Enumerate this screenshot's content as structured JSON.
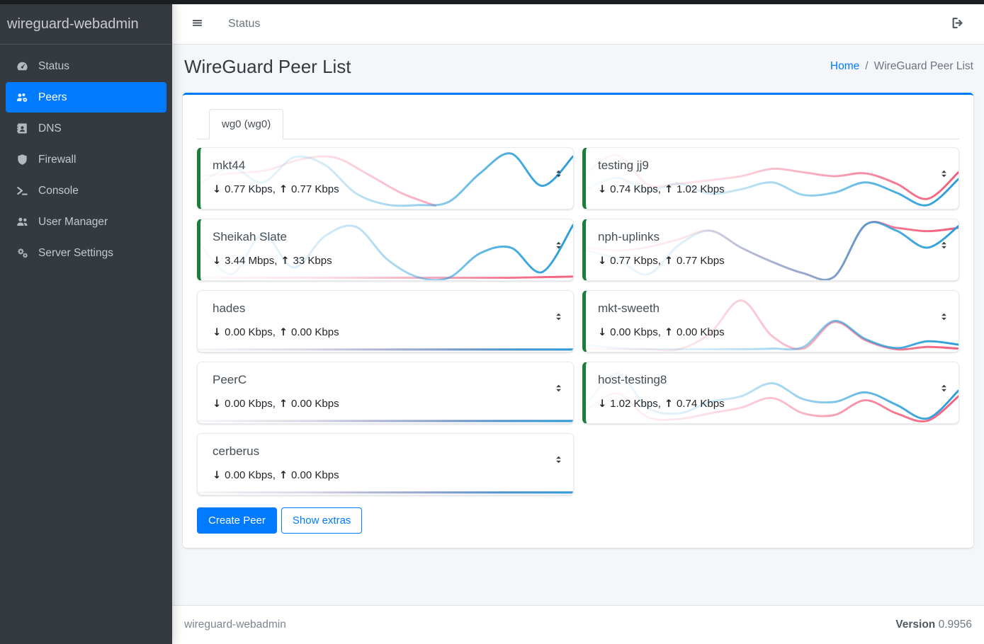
{
  "colors": {
    "accent_blue": "#007bff",
    "online_green": "#1d7e3c",
    "chart_blue": "#2b9edb",
    "chart_pink": "#f2617f",
    "sidebar_bg": "#343a40",
    "content_bg": "#f4f6f9"
  },
  "sidebar": {
    "brand": "wireguard-webadmin",
    "items": [
      {
        "id": "status",
        "label": "Status",
        "icon": "gauge-icon",
        "active": false
      },
      {
        "id": "peers",
        "label": "Peers",
        "icon": "users-gear-icon",
        "active": true
      },
      {
        "id": "dns",
        "label": "DNS",
        "icon": "address-book-icon",
        "active": false
      },
      {
        "id": "firewall",
        "label": "Firewall",
        "icon": "shield-icon",
        "active": false
      },
      {
        "id": "console",
        "label": "Console",
        "icon": "terminal-icon",
        "active": false
      },
      {
        "id": "user-manager",
        "label": "User Manager",
        "icon": "users-icon",
        "active": false
      },
      {
        "id": "server-settings",
        "label": "Server Settings",
        "icon": "cogs-icon",
        "active": false
      }
    ]
  },
  "navbar": {
    "link_label": "Status"
  },
  "page": {
    "title": "WireGuard Peer List",
    "breadcrumb_home": "Home",
    "breadcrumb_separator": "/",
    "breadcrumb_current": "WireGuard Peer List"
  },
  "tab": {
    "label": "wg0 (wg0)"
  },
  "labels": {
    "traffic_separator": ","
  },
  "peers": {
    "columns": [
      [
        {
          "name": "mkt44",
          "online": true,
          "down": "0.77 Kbps",
          "up": "0.77 Kbps",
          "spark": {
            "blue": [
              0.42,
              0.7,
              0.44,
              0.88,
              0.75,
              0.25,
              0.05,
              0.04,
              0.1,
              0.6,
              0.95,
              0.38,
              0.9
            ],
            "pink": [
              0.55,
              0.6,
              0.66,
              0.85,
              0.88,
              0.58,
              0.25,
              0.03
            ],
            "pink_span": 0.63
          }
        },
        {
          "name": "Sheikah Slate",
          "online": true,
          "down": "3.44 Mbps",
          "up": "33 Kbps",
          "spark": {
            "blue": [
              0.6,
              0.08,
              0.78,
              0.2,
              0.75,
              0.92,
              0.35,
              0.03,
              0.02,
              0.45,
              0.55,
              0.12,
              0.95
            ],
            "pink": [
              0.03,
              0.02,
              0.02,
              0.02,
              0.02,
              0.02,
              0.02,
              0.02,
              0.02,
              0.02,
              0.02,
              0.03,
              0.04
            ],
            "pink_span": 1
          }
        },
        {
          "name": "hades",
          "online": false,
          "down": "0.00 Kbps",
          "up": "0.00 Kbps",
          "spark": {
            "blue": [
              0.015,
              0.015,
              0.015,
              0.015,
              0.015,
              0.015,
              0.015,
              0.015,
              0.015,
              0.015,
              0.015,
              0.015,
              0.015
            ],
            "pink": [
              0.015,
              0.015,
              0.015,
              0.015,
              0.015,
              0.015,
              0.015,
              0.015,
              0.015,
              0.015,
              0.015,
              0.015,
              0.015
            ],
            "pink_span": 1
          }
        },
        {
          "name": "PeerC",
          "online": false,
          "down": "0.00 Kbps",
          "up": "0.00 Kbps",
          "spark": {
            "blue": [
              0.015,
              0.015,
              0.015,
              0.015,
              0.015,
              0.015,
              0.015,
              0.015,
              0.015,
              0.015,
              0.015,
              0.015,
              0.015
            ],
            "pink": [
              0.015,
              0.015,
              0.015,
              0.015,
              0.015,
              0.015,
              0.015,
              0.015,
              0.015,
              0.015,
              0.015,
              0.015,
              0.015
            ],
            "pink_span": 1
          }
        },
        {
          "name": "cerberus",
          "online": false,
          "down": "0.00 Kbps",
          "up": "0.00 Kbps",
          "spark": {
            "blue": [
              0.015,
              0.015,
              0.015,
              0.015,
              0.015,
              0.015,
              0.015,
              0.015,
              0.015,
              0.015,
              0.015,
              0.015,
              0.015
            ],
            "pink": [
              0.015,
              0.015,
              0.015,
              0.015,
              0.015,
              0.015,
              0.015,
              0.015,
              0.015,
              0.015,
              0.015,
              0.015,
              0.015
            ],
            "pink_span": 1
          }
        }
      ],
      [
        {
          "name": "testing jj9",
          "online": true,
          "down": "0.74 Kbps",
          "up": "1.02 Kbps",
          "spark": {
            "blue": [
              0.32,
              0.52,
              0.3,
              0.42,
              0.24,
              0.32,
              0.44,
              0.22,
              0.26,
              0.44,
              0.26,
              0.04,
              0.5
            ],
            "pink": [
              0.6,
              0.92,
              0.4,
              0.42,
              0.48,
              0.55,
              0.68,
              0.62,
              0.55,
              0.6,
              0.42,
              0.15,
              0.62
            ],
            "pink_span": 1
          }
        },
        {
          "name": "nph-uplinks",
          "online": true,
          "down": "0.77 Kbps",
          "up": "0.77 Kbps",
          "spark": {
            "blue": [
              0.5,
              0.35,
              0.08,
              0.6,
              0.85,
              0.55,
              0.3,
              0.1,
              0.04,
              0.95,
              0.85,
              0.55,
              0.93
            ],
            "pink": [
              0.55,
              0.5,
              0.56,
              0.7,
              0.85,
              0.55,
              0.3,
              0.1,
              0.04,
              0.95,
              0.9,
              0.84,
              0.9
            ],
            "pink_span": 1
          }
        },
        {
          "name": "mkt-sweeth",
          "online": true,
          "down": "0.00 Kbps",
          "up": "0.00 Kbps",
          "spark": {
            "blue": [
              0.1,
              0.04,
              0.02,
              0.02,
              0.02,
              0.02,
              0.03,
              0.06,
              0.52,
              0.2,
              0.04,
              0.16,
              0.1
            ],
            "pink": [
              0.03,
              0.02,
              0.02,
              0.02,
              0.3,
              0.88,
              0.25,
              0.03,
              0.5,
              0.18,
              0.02,
              0.06,
              0.03
            ],
            "pink_span": 1
          }
        },
        {
          "name": "host-testing8",
          "online": true,
          "down": "1.02 Kbps",
          "up": "0.74 Kbps",
          "spark": {
            "blue": [
              0.3,
              0.85,
              0.25,
              0.15,
              0.35,
              0.45,
              0.68,
              0.4,
              0.35,
              0.52,
              0.3,
              0.06,
              0.55
            ],
            "pink": [
              0.2,
              0.5,
              0.08,
              0.05,
              0.15,
              0.25,
              0.42,
              0.15,
              0.12,
              0.38,
              0.15,
              0.02,
              0.45
            ],
            "pink_span": 1
          }
        }
      ]
    ]
  },
  "actions": {
    "create_peer": "Create Peer",
    "show_extras": "Show extras"
  },
  "footer": {
    "brand": "wireguard-webadmin",
    "version_label": "Version",
    "version_value": "0.9956"
  }
}
